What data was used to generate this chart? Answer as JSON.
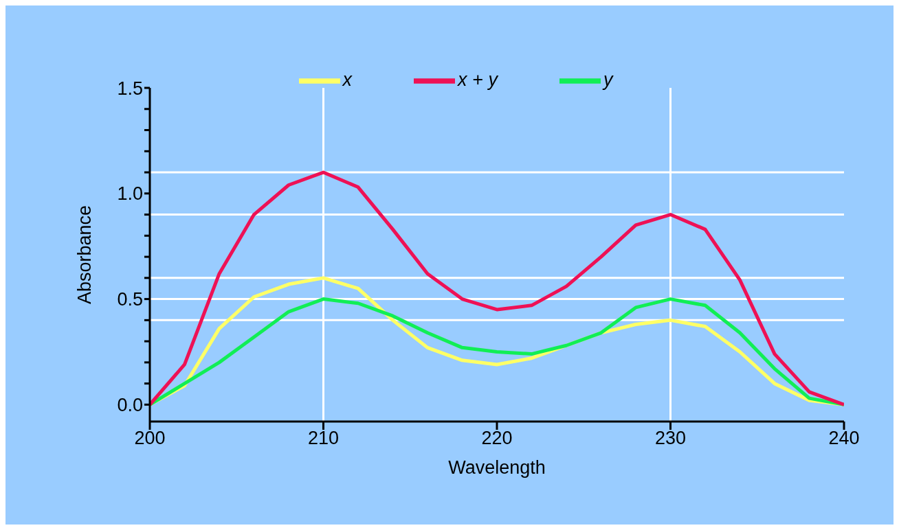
{
  "chart_data": {
    "type": "line",
    "xlabel": "Wavelength",
    "ylabel": "Absorbance",
    "x": [
      200,
      202,
      204,
      206,
      208,
      210,
      212,
      214,
      216,
      218,
      220,
      222,
      224,
      226,
      228,
      230,
      232,
      234,
      236,
      238,
      240
    ],
    "series": [
      {
        "name": "x",
        "color": "#ffff66",
        "values": [
          0,
          0.09,
          0.36,
          0.51,
          0.57,
          0.6,
          0.55,
          0.4,
          0.27,
          0.21,
          0.19,
          0.22,
          0.28,
          0.34,
          0.38,
          0.4,
          0.37,
          0.25,
          0.1,
          0.02,
          0
        ]
      },
      {
        "name": "y",
        "color": "#11ee55",
        "values": [
          0,
          0.1,
          0.2,
          0.32,
          0.44,
          0.5,
          0.48,
          0.42,
          0.34,
          0.27,
          0.25,
          0.24,
          0.28,
          0.34,
          0.46,
          0.5,
          0.47,
          0.34,
          0.17,
          0.03,
          0
        ]
      },
      {
        "name": "x + y",
        "color": "#ee1155",
        "values": [
          0,
          0.19,
          0.62,
          0.9,
          1.04,
          1.1,
          1.03,
          0.83,
          0.62,
          0.5,
          0.45,
          0.47,
          0.56,
          0.7,
          0.85,
          0.9,
          0.83,
          0.59,
          0.24,
          0.06,
          0
        ]
      }
    ],
    "xlim": [
      200,
      240
    ],
    "xticks": [
      200,
      210,
      220,
      230,
      240
    ],
    "ylim": [
      -0.08,
      1.5
    ],
    "yticks": [
      {
        "value": 0,
        "label": "0.0"
      },
      {
        "value": 0.1,
        "label": null
      },
      {
        "value": 0.2,
        "label": null
      },
      {
        "value": 0.3,
        "label": null
      },
      {
        "value": 0.4,
        "label": null
      },
      {
        "value": 0.5,
        "label": "0.5"
      },
      {
        "value": 0.6,
        "label": null
      },
      {
        "value": 0.7,
        "label": null
      },
      {
        "value": 0.8,
        "label": null
      },
      {
        "value": 0.9,
        "label": null
      },
      {
        "value": 1,
        "label": "1.0"
      },
      {
        "value": 1.1,
        "label": null
      },
      {
        "value": 1.2,
        "label": null
      },
      {
        "value": 1.3,
        "label": null
      },
      {
        "value": 1.4,
        "label": null
      },
      {
        "value": 1.5,
        "label": "1.5"
      }
    ],
    "ref_lines": [
      {
        "axis": "y",
        "value": 1.1,
        "color": "#ffffff"
      },
      {
        "axis": "y",
        "value": 0.9,
        "color": "#ffffff"
      },
      {
        "axis": "y",
        "value": 0.6,
        "color": "#ffffff"
      },
      {
        "axis": "y",
        "value": 0.5,
        "color": "#ffffff"
      },
      {
        "axis": "y",
        "value": 0.4,
        "color": "#ffffff"
      },
      {
        "axis": "x",
        "value": 210,
        "color": "#ffffff"
      },
      {
        "axis": "x",
        "value": 230,
        "color": "#ffffff"
      }
    ],
    "grid": false,
    "legend": "top",
    "marker": "none",
    "line_style": "solid"
  }
}
